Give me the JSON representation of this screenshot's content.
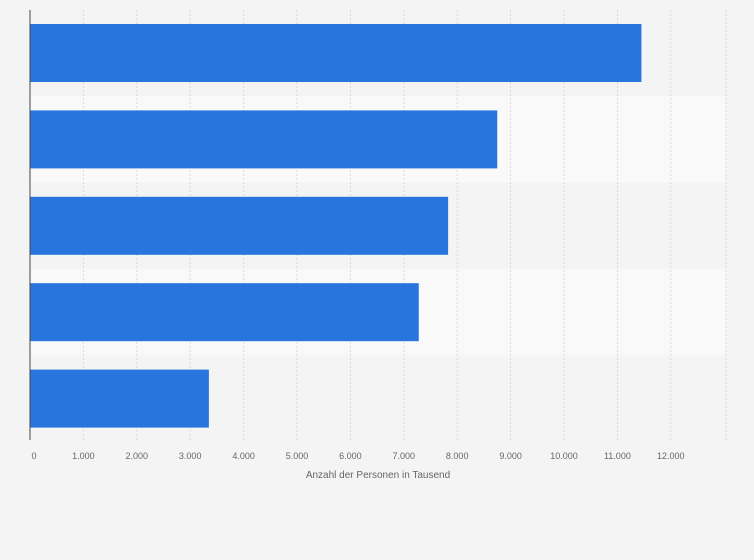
{
  "chart_data": {
    "type": "bar",
    "orientation": "horizontal",
    "categories": [
      "",
      "",
      "",
      "",
      ""
    ],
    "values": [
      11450,
      8750,
      7830,
      7280,
      3350
    ],
    "title": "",
    "xlabel": "Anzahl der Personen in Tausend",
    "ylabel": "",
    "xlim": [
      0,
      13000
    ],
    "x_ticks": [
      0,
      1000,
      2000,
      3000,
      4000,
      5000,
      6000,
      7000,
      8000,
      9000,
      10000,
      11000,
      12000
    ],
    "x_tick_labels": [
      "0",
      "1.000",
      "2.000",
      "3.000",
      "4.000",
      "5.000",
      "6.000",
      "7.000",
      "8.000",
      "9.000",
      "10.000",
      "11.000",
      "12.000"
    ],
    "grid": "vertical-dashed",
    "legend": "none",
    "colors": {
      "bar": "#2876dd",
      "band_light": "#f9f9f9",
      "band_dark": "#f4f4f4",
      "grid": "#d9d9d9",
      "axis": "#444444"
    }
  }
}
